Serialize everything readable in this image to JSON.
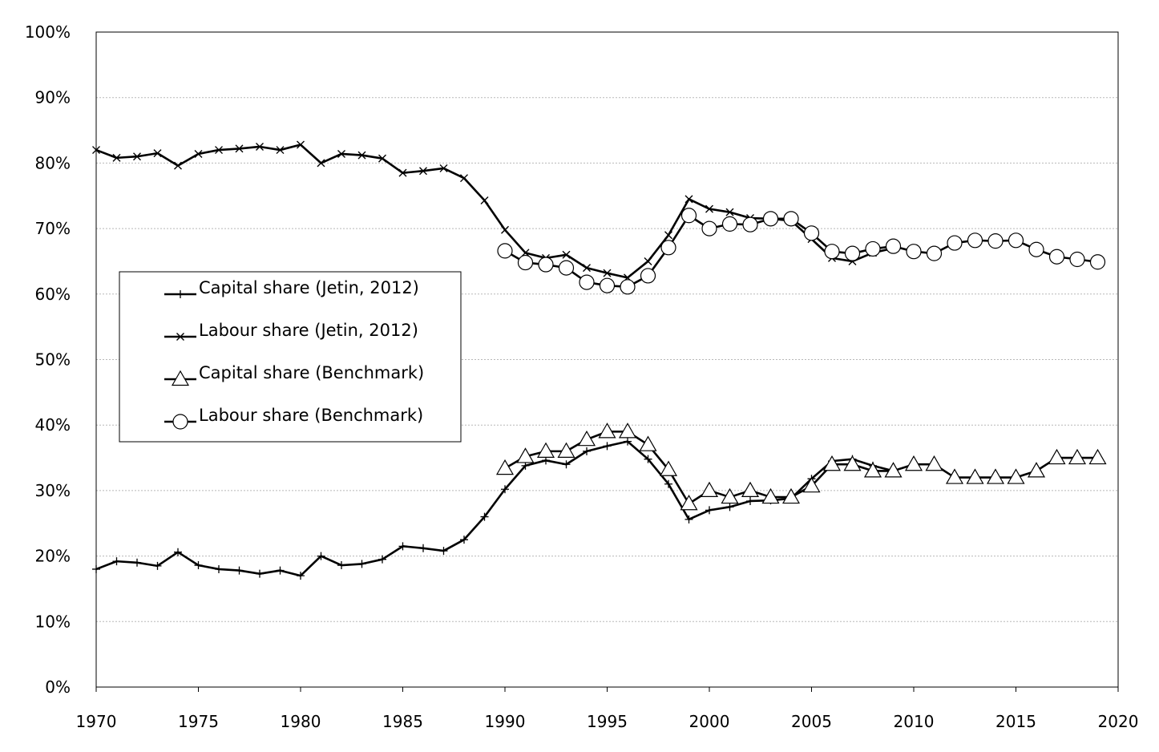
{
  "chart_data": {
    "type": "line",
    "title": "",
    "xlabel": "",
    "ylabel": "",
    "xlim": [
      1970,
      2020
    ],
    "ylim": [
      0,
      1
    ],
    "x_ticks": [
      1970,
      1975,
      1980,
      1985,
      1990,
      1995,
      2000,
      2005,
      2010,
      2015,
      2020
    ],
    "x_tick_labels": [
      "1970",
      "1975",
      "1980",
      "1985",
      "1990",
      "1995",
      "2000",
      "2005",
      "2010",
      "2015",
      "2020"
    ],
    "y_ticks": [
      0,
      0.1,
      0.2,
      0.3,
      0.4,
      0.5,
      0.6,
      0.7,
      0.8,
      0.9,
      1.0
    ],
    "y_tick_labels": [
      "0%",
      "10%",
      "20%",
      "30%",
      "40%",
      "50%",
      "60%",
      "70%",
      "80%",
      "90%",
      "100%"
    ],
    "grid": "horizontal dotted",
    "legend_position": "center-left",
    "series": [
      {
        "name": "Capital share (Jetin, 2012)",
        "marker": "plus",
        "x": [
          1970,
          1971,
          1972,
          1973,
          1974,
          1975,
          1976,
          1977,
          1978,
          1979,
          1980,
          1981,
          1982,
          1983,
          1984,
          1985,
          1986,
          1987,
          1988,
          1989,
          1990,
          1991,
          1992,
          1993,
          1994,
          1995,
          1996,
          1997,
          1998,
          1999,
          2000,
          2001,
          2002,
          2003,
          2004,
          2005,
          2006,
          2007,
          2008,
          2009
        ],
        "values": [
          0.18,
          0.192,
          0.19,
          0.185,
          0.206,
          0.186,
          0.18,
          0.178,
          0.173,
          0.178,
          0.17,
          0.2,
          0.186,
          0.188,
          0.195,
          0.215,
          0.212,
          0.208,
          0.225,
          0.26,
          0.302,
          0.338,
          0.346,
          0.34,
          0.36,
          0.368,
          0.375,
          0.348,
          0.31,
          0.256,
          0.27,
          0.275,
          0.284,
          0.285,
          0.288,
          0.318,
          0.345,
          0.348,
          0.338,
          0.33
        ]
      },
      {
        "name": "Labour share (Jetin, 2012)",
        "marker": "x",
        "x": [
          1970,
          1971,
          1972,
          1973,
          1974,
          1975,
          1976,
          1977,
          1978,
          1979,
          1980,
          1981,
          1982,
          1983,
          1984,
          1985,
          1986,
          1987,
          1988,
          1989,
          1990,
          1991,
          1992,
          1993,
          1994,
          1995,
          1996,
          1997,
          1998,
          1999,
          2000,
          2001,
          2002,
          2003,
          2004,
          2005,
          2006,
          2007,
          2008,
          2009
        ],
        "values": [
          0.82,
          0.808,
          0.81,
          0.815,
          0.796,
          0.814,
          0.82,
          0.822,
          0.825,
          0.82,
          0.828,
          0.8,
          0.814,
          0.812,
          0.807,
          0.785,
          0.788,
          0.792,
          0.777,
          0.743,
          0.698,
          0.663,
          0.655,
          0.66,
          0.64,
          0.632,
          0.625,
          0.65,
          0.69,
          0.745,
          0.73,
          0.725,
          0.716,
          0.715,
          0.712,
          0.684,
          0.655,
          0.65,
          0.663,
          0.67
        ]
      },
      {
        "name": "Capital share (Benchmark)",
        "marker": "triangle",
        "x": [
          1990,
          1991,
          1992,
          1993,
          1994,
          1995,
          1996,
          1997,
          1998,
          1999,
          2000,
          2001,
          2002,
          2003,
          2004,
          2005,
          2006,
          2007,
          2008,
          2009,
          2010,
          2011,
          2012,
          2013,
          2014,
          2015,
          2016,
          2017,
          2018,
          2019
        ],
        "values": [
          0.334,
          0.352,
          0.36,
          0.36,
          0.378,
          0.39,
          0.39,
          0.37,
          0.332,
          0.28,
          0.3,
          0.29,
          0.3,
          0.29,
          0.29,
          0.307,
          0.34,
          0.34,
          0.33,
          0.33,
          0.34,
          0.34,
          0.32,
          0.32,
          0.32,
          0.32,
          0.33,
          0.35,
          0.35,
          0.35
        ]
      },
      {
        "name": "Labour share (Benchmark)",
        "marker": "circle",
        "x": [
          1990,
          1991,
          1992,
          1993,
          1994,
          1995,
          1996,
          1997,
          1998,
          1999,
          2000,
          2001,
          2002,
          2003,
          2004,
          2005,
          2006,
          2007,
          2008,
          2009,
          2010,
          2011,
          2012,
          2013,
          2014,
          2015,
          2016,
          2017,
          2018,
          2019
        ],
        "values": [
          0.666,
          0.648,
          0.645,
          0.64,
          0.618,
          0.613,
          0.611,
          0.628,
          0.671,
          0.72,
          0.7,
          0.707,
          0.706,
          0.715,
          0.715,
          0.693,
          0.665,
          0.662,
          0.669,
          0.673,
          0.665,
          0.662,
          0.678,
          0.682,
          0.681,
          0.682,
          0.668,
          0.657,
          0.653,
          0.649
        ]
      }
    ]
  }
}
